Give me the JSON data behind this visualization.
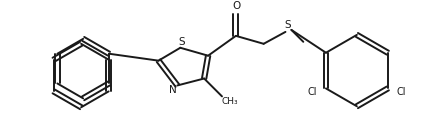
{
  "bg_color": "#ffffff",
  "line_color": "#1a1a1a",
  "line_width": 1.4,
  "figsize": [
    4.4,
    1.4
  ],
  "dpi": 100,
  "xlim": [
    0,
    440
  ],
  "ylim": [
    0,
    140
  ]
}
